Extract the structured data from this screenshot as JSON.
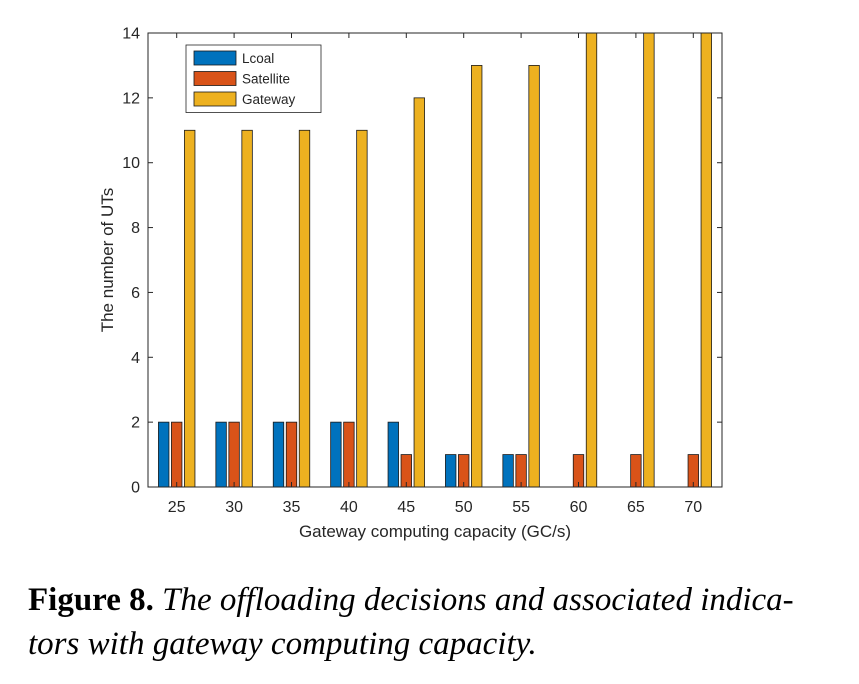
{
  "figure": {
    "caption_label": "Figure 8.",
    "caption_text": "The offloading decisions and associated indica-tors with gateway computing capacity."
  },
  "chart_data": {
    "type": "bar",
    "title": "",
    "xlabel": "Gateway computing capacity (GC/s)",
    "ylabel": "The number of UTs",
    "categories": [
      "25",
      "30",
      "35",
      "40",
      "45",
      "50",
      "55",
      "60",
      "65",
      "70"
    ],
    "series": [
      {
        "name": "Lcoal",
        "color": "#0072BD",
        "values": [
          2,
          2,
          2,
          2,
          2,
          1,
          1,
          0,
          0,
          0
        ]
      },
      {
        "name": "Satellite",
        "color": "#D95319",
        "values": [
          2,
          2,
          2,
          2,
          1,
          1,
          1,
          1,
          1,
          1
        ]
      },
      {
        "name": "Gateway",
        "color": "#EDB120",
        "values": [
          11,
          11,
          11,
          11,
          12,
          13,
          13,
          14,
          14,
          14
        ]
      }
    ],
    "ylim": [
      0,
      14
    ],
    "yticks": [
      "0",
      "2",
      "4",
      "6",
      "8",
      "10",
      "12",
      "14"
    ],
    "grid": false,
    "legend_position": "top-left"
  }
}
